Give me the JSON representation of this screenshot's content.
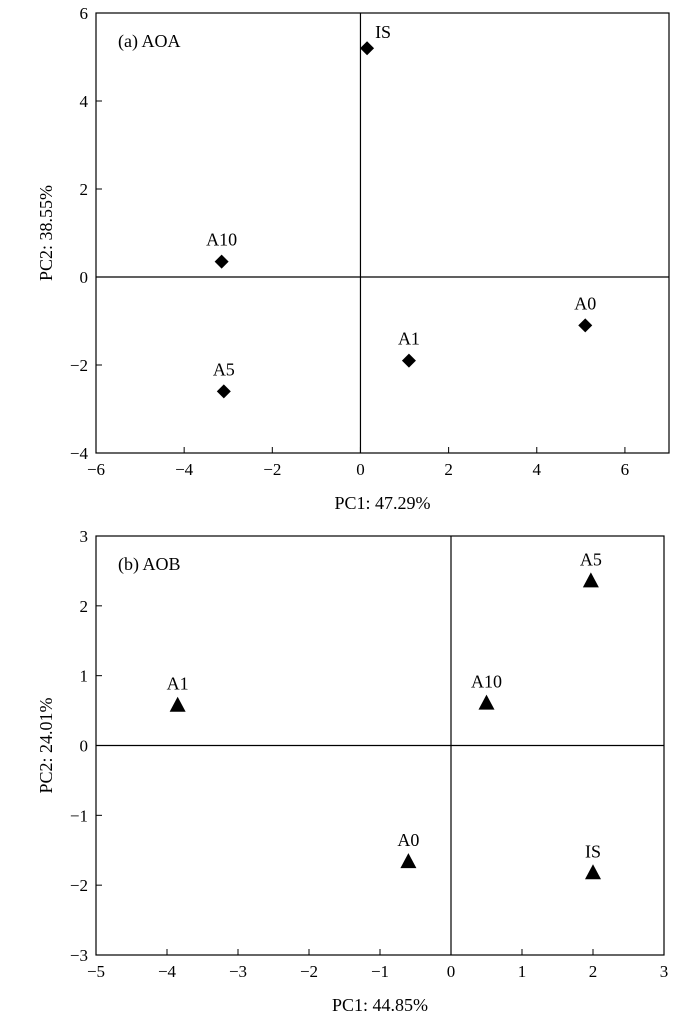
{
  "chart_data": [
    {
      "type": "scatter",
      "panel_label": "(a) AOA",
      "xlabel": "PC1: 47.29%",
      "ylabel": "PC2: 38.55%",
      "xlim": [
        -6,
        7
      ],
      "ylim": [
        -4,
        6
      ],
      "xticks": [
        -6,
        -4,
        -2,
        0,
        2,
        4,
        6
      ],
      "xtick_labels": [
        "−6",
        "−4",
        "−2",
        "0",
        "2",
        "4",
        "6"
      ],
      "yticks": [
        -4,
        -2,
        0,
        2,
        4,
        6
      ],
      "ytick_labels": [
        "−4",
        "−2",
        "0",
        "2",
        "4",
        "6"
      ],
      "marker": "diamond",
      "color": "#000000",
      "points": [
        {
          "label": "IS",
          "x": 0.15,
          "y": 5.2
        },
        {
          "label": "A10",
          "x": -3.15,
          "y": 0.35
        },
        {
          "label": "A5",
          "x": -3.1,
          "y": -2.6
        },
        {
          "label": "A1",
          "x": 1.1,
          "y": -1.9
        },
        {
          "label": "A0",
          "x": 5.1,
          "y": -1.1
        }
      ]
    },
    {
      "type": "scatter",
      "panel_label": "(b) AOB",
      "xlabel": "PC1: 44.85%",
      "ylabel": "PC2: 24.01%",
      "xlim": [
        -5,
        3
      ],
      "ylim": [
        -3,
        3
      ],
      "xticks": [
        -5,
        -4,
        -3,
        -2,
        -1,
        0,
        1,
        2,
        3
      ],
      "xtick_labels": [
        "−5",
        "−4",
        "−3",
        "−2",
        "−1",
        "0",
        "1",
        "2",
        "3"
      ],
      "yticks": [
        -3,
        -2,
        -1,
        0,
        1,
        2,
        3
      ],
      "ytick_labels": [
        "−3",
        "−2",
        "−1",
        "0",
        "1",
        "2",
        "3"
      ],
      "marker": "triangle",
      "color": "#000000",
      "points": [
        {
          "label": "A5",
          "x": 1.97,
          "y": 2.35
        },
        {
          "label": "A1",
          "x": -3.85,
          "y": 0.57
        },
        {
          "label": "A10",
          "x": 0.5,
          "y": 0.6
        },
        {
          "label": "A0",
          "x": -0.6,
          "y": -1.67
        },
        {
          "label": "IS",
          "x": 2.0,
          "y": -1.83
        }
      ]
    }
  ]
}
